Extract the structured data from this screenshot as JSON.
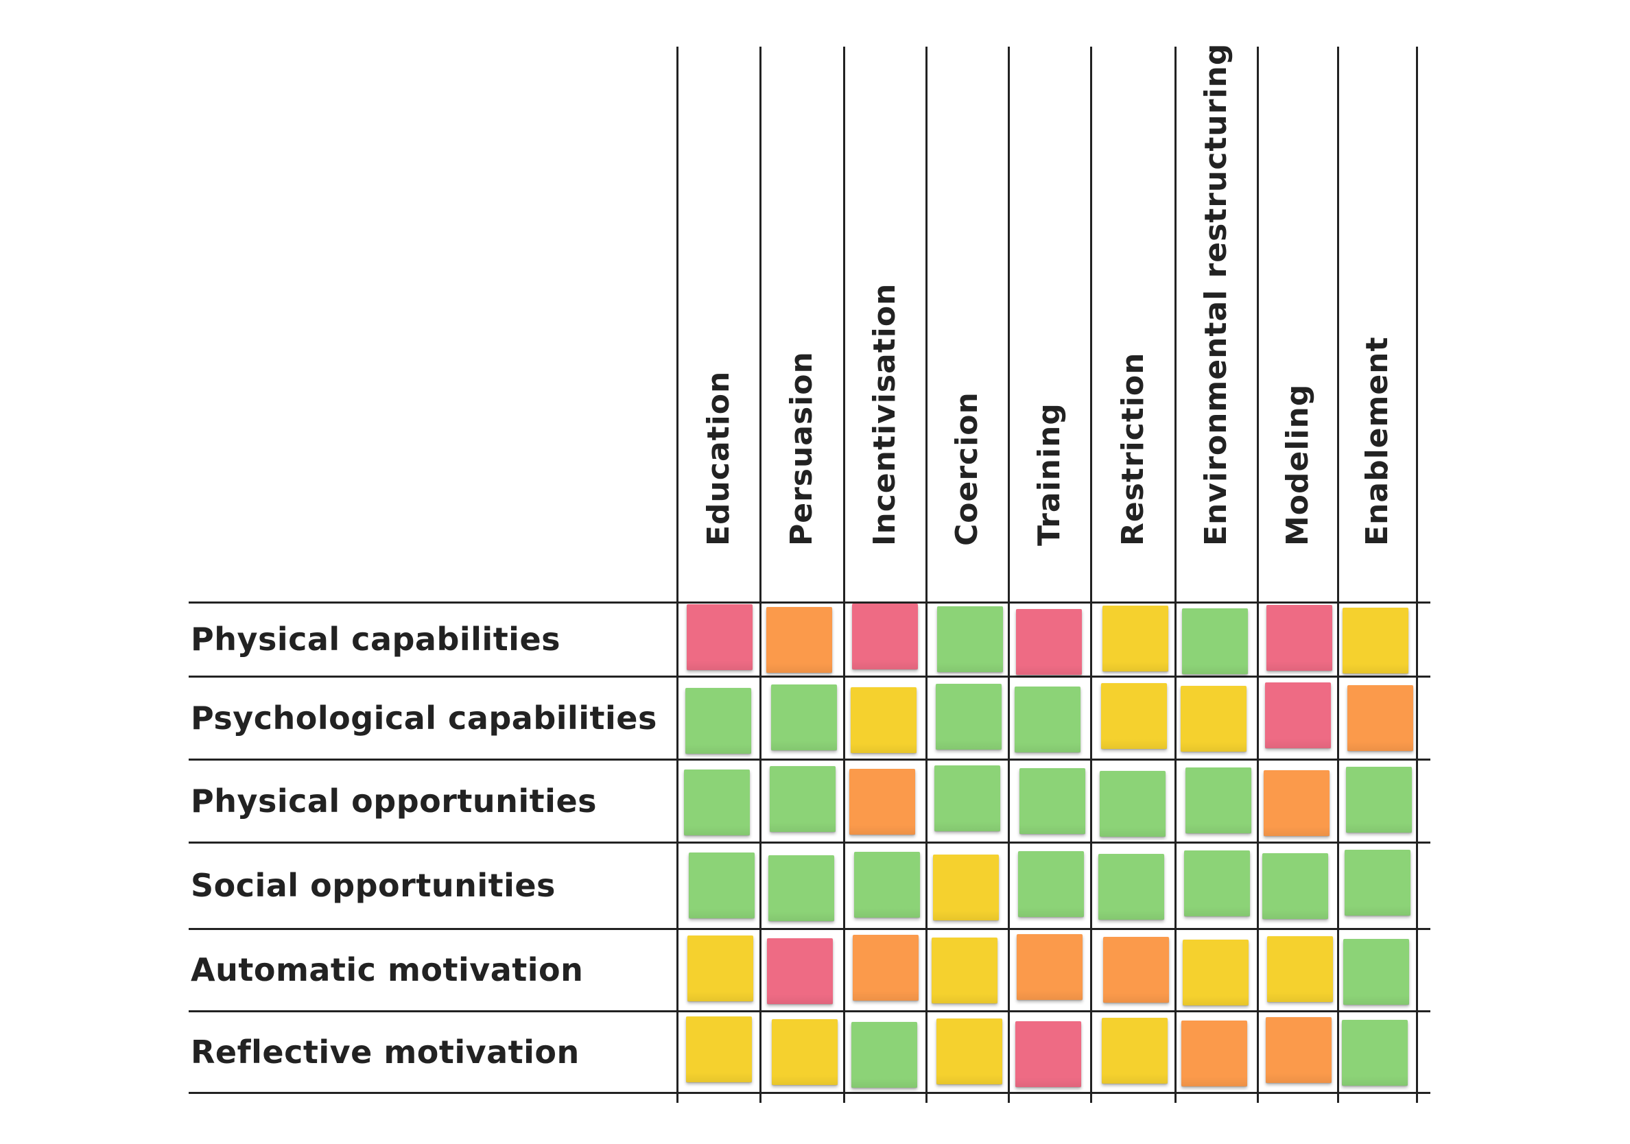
{
  "columns": [
    "Education",
    "Persuasion",
    "Incentivisation",
    "Coercion",
    "Training",
    "Restriction",
    "Environmental restructuring",
    "Modeling",
    "Enablement"
  ],
  "rows": [
    {
      "label": "Physical capabilities",
      "ratings": [
        "red",
        "orange",
        "red",
        "green",
        "red",
        "yellow",
        "green",
        "red",
        "yellow"
      ]
    },
    {
      "label": "Psychological capabilities",
      "ratings": [
        "green",
        "green",
        "yellow",
        "green",
        "green",
        "yellow",
        "yellow",
        "red",
        "orange"
      ]
    },
    {
      "label": "Physical opportunities",
      "ratings": [
        "green",
        "green",
        "orange",
        "green",
        "green",
        "green",
        "green",
        "orange",
        "green"
      ]
    },
    {
      "label": "Social opportunities",
      "ratings": [
        "green",
        "green",
        "green",
        "yellow",
        "green",
        "green",
        "green",
        "green",
        "green"
      ]
    },
    {
      "label": "Automatic motivation",
      "ratings": [
        "yellow",
        "red",
        "orange",
        "yellow",
        "orange",
        "orange",
        "yellow",
        "yellow",
        "green"
      ]
    },
    {
      "label": "Reflective motivation",
      "ratings": [
        "yellow",
        "yellow",
        "green",
        "yellow",
        "red",
        "yellow",
        "orange",
        "orange",
        "green"
      ]
    }
  ],
  "colors": {
    "red": "#ee6b84",
    "orange": "#fb9a4b",
    "yellow": "#f5d12e",
    "green": "#8cd377",
    "line": "#222222",
    "text": "#222222"
  }
}
